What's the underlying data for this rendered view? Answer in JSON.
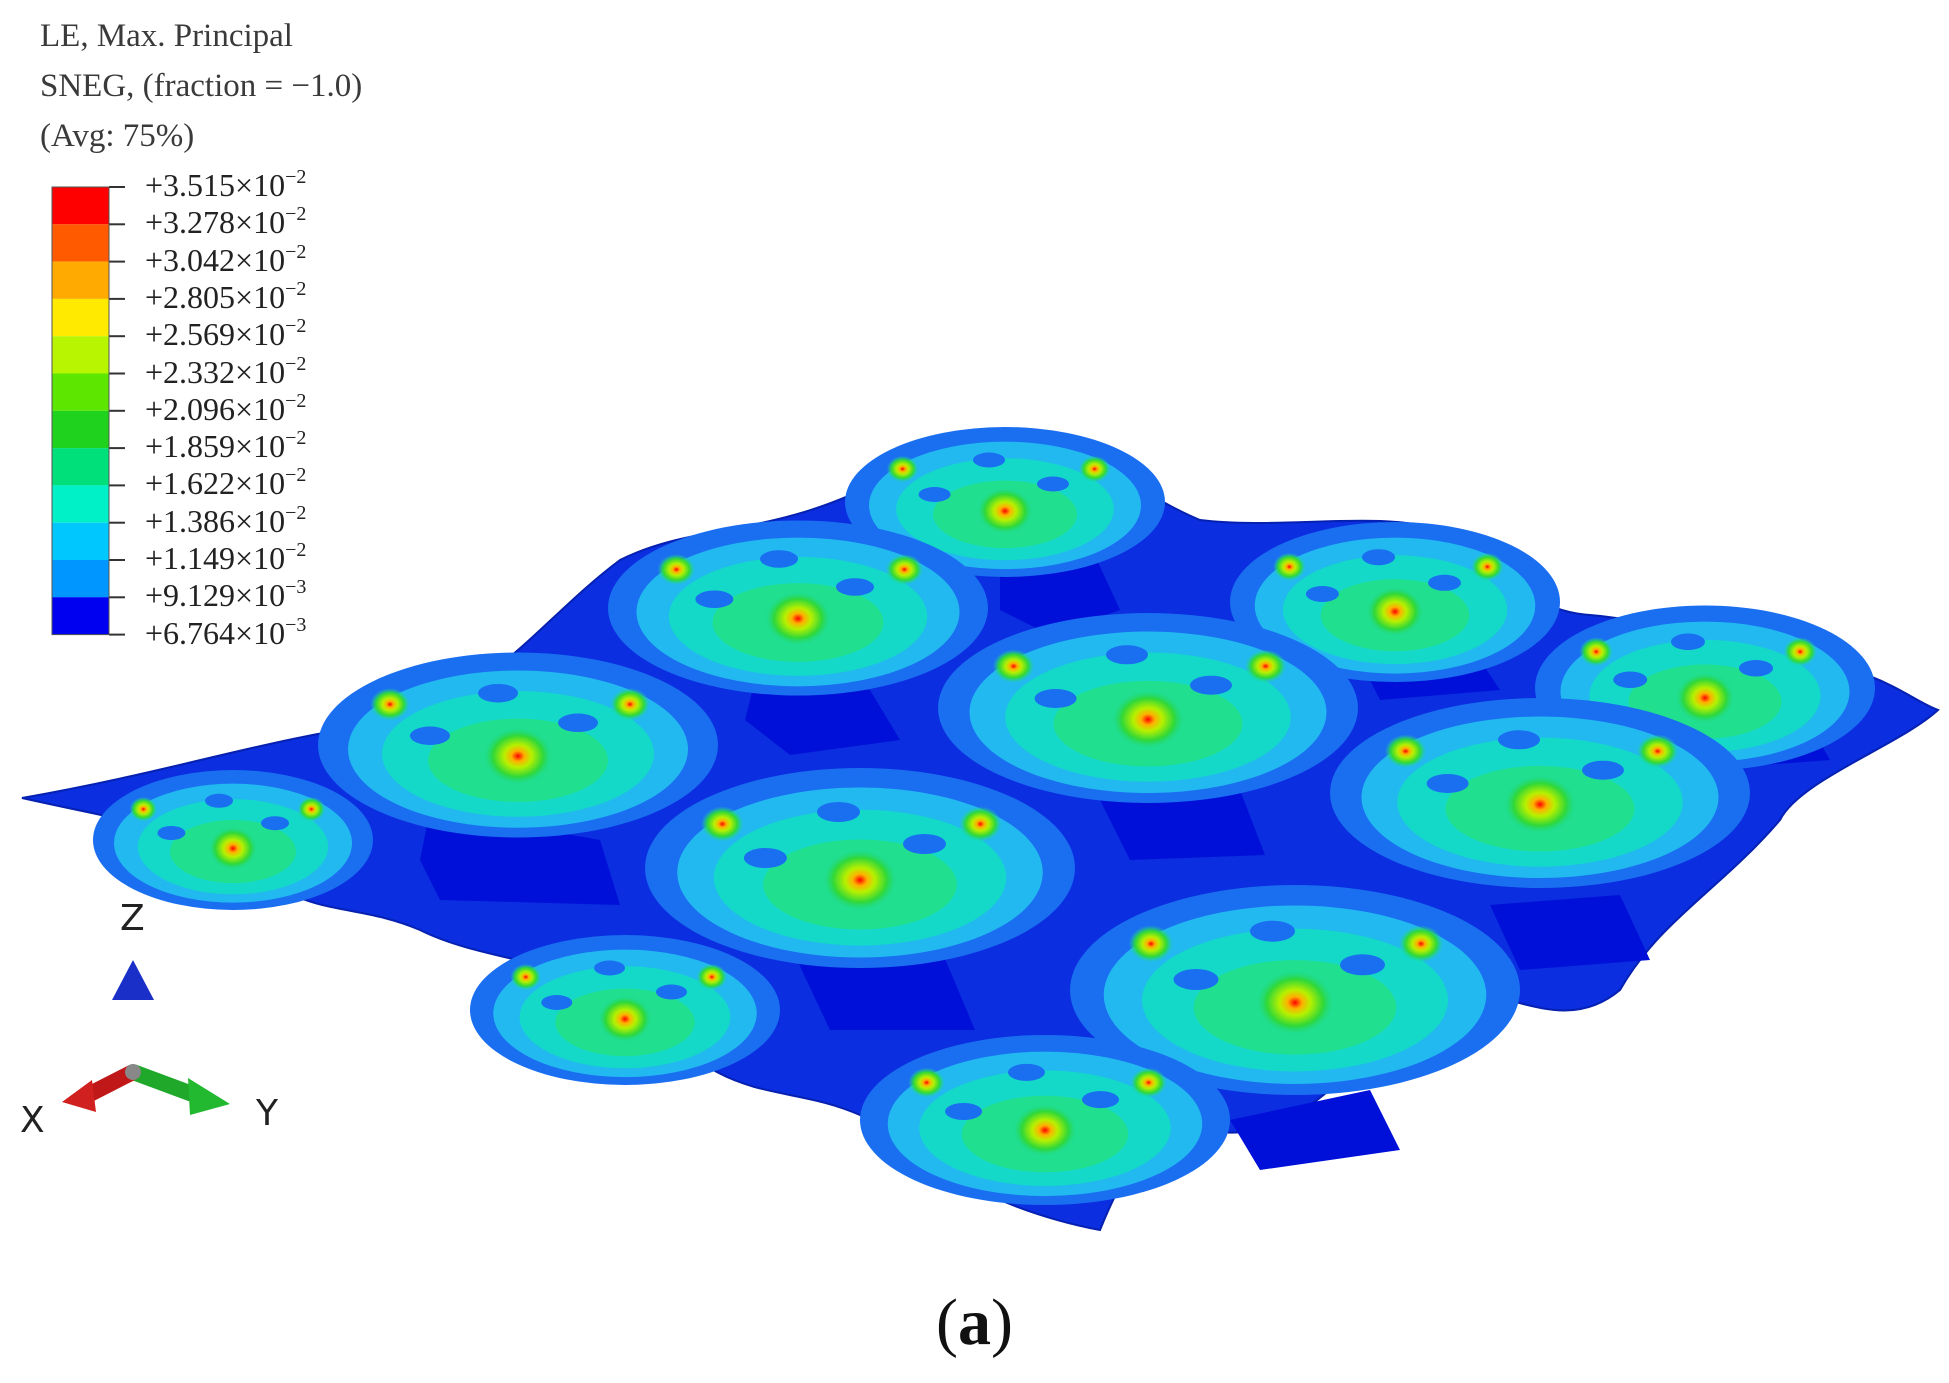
{
  "legend": {
    "title_lines": [
      "LE, Max. Principal",
      "SNEG, (fraction = −1.0)",
      "(Avg: 75%)"
    ],
    "bands": [
      {
        "mantissa": "+3.515",
        "exp": "−2",
        "color": "#ff0000"
      },
      {
        "mantissa": "+3.278",
        "exp": "−2",
        "color": "#ff5a00"
      },
      {
        "mantissa": "+3.042",
        "exp": "−2",
        "color": "#ffaa00"
      },
      {
        "mantissa": "+2.805",
        "exp": "−2",
        "color": "#ffea00"
      },
      {
        "mantissa": "+2.569",
        "exp": "−2",
        "color": "#b8f500"
      },
      {
        "mantissa": "+2.332",
        "exp": "−2",
        "color": "#5ce600"
      },
      {
        "mantissa": "+2.096",
        "exp": "−2",
        "color": "#1ed21e"
      },
      {
        "mantissa": "+1.859",
        "exp": "−2",
        "color": "#00e07a"
      },
      {
        "mantissa": "+1.622",
        "exp": "−2",
        "color": "#00f0c8"
      },
      {
        "mantissa": "+1.386",
        "exp": "−2",
        "color": "#00c8ff"
      },
      {
        "mantissa": "+1.149",
        "exp": "−2",
        "color": "#0096ff"
      },
      {
        "mantissa": "+9.129",
        "exp": "−3",
        "color": "#0050ff"
      },
      {
        "mantissa": "+6.764",
        "exp": "−3",
        "color": "#0000f0"
      }
    ]
  },
  "triad": {
    "z": "Z",
    "x": "X",
    "y": "Y"
  },
  "caption": {
    "open": "(",
    "letter": "a",
    "close": ")"
  },
  "colors": {
    "sheet_base": "#0a2ee0",
    "valley": "#0010d8",
    "ring_outer": "#1a6ef0",
    "ring_mid": "#22b8f0",
    "plateau": "#14d8c8",
    "hot": "#ff0000"
  }
}
